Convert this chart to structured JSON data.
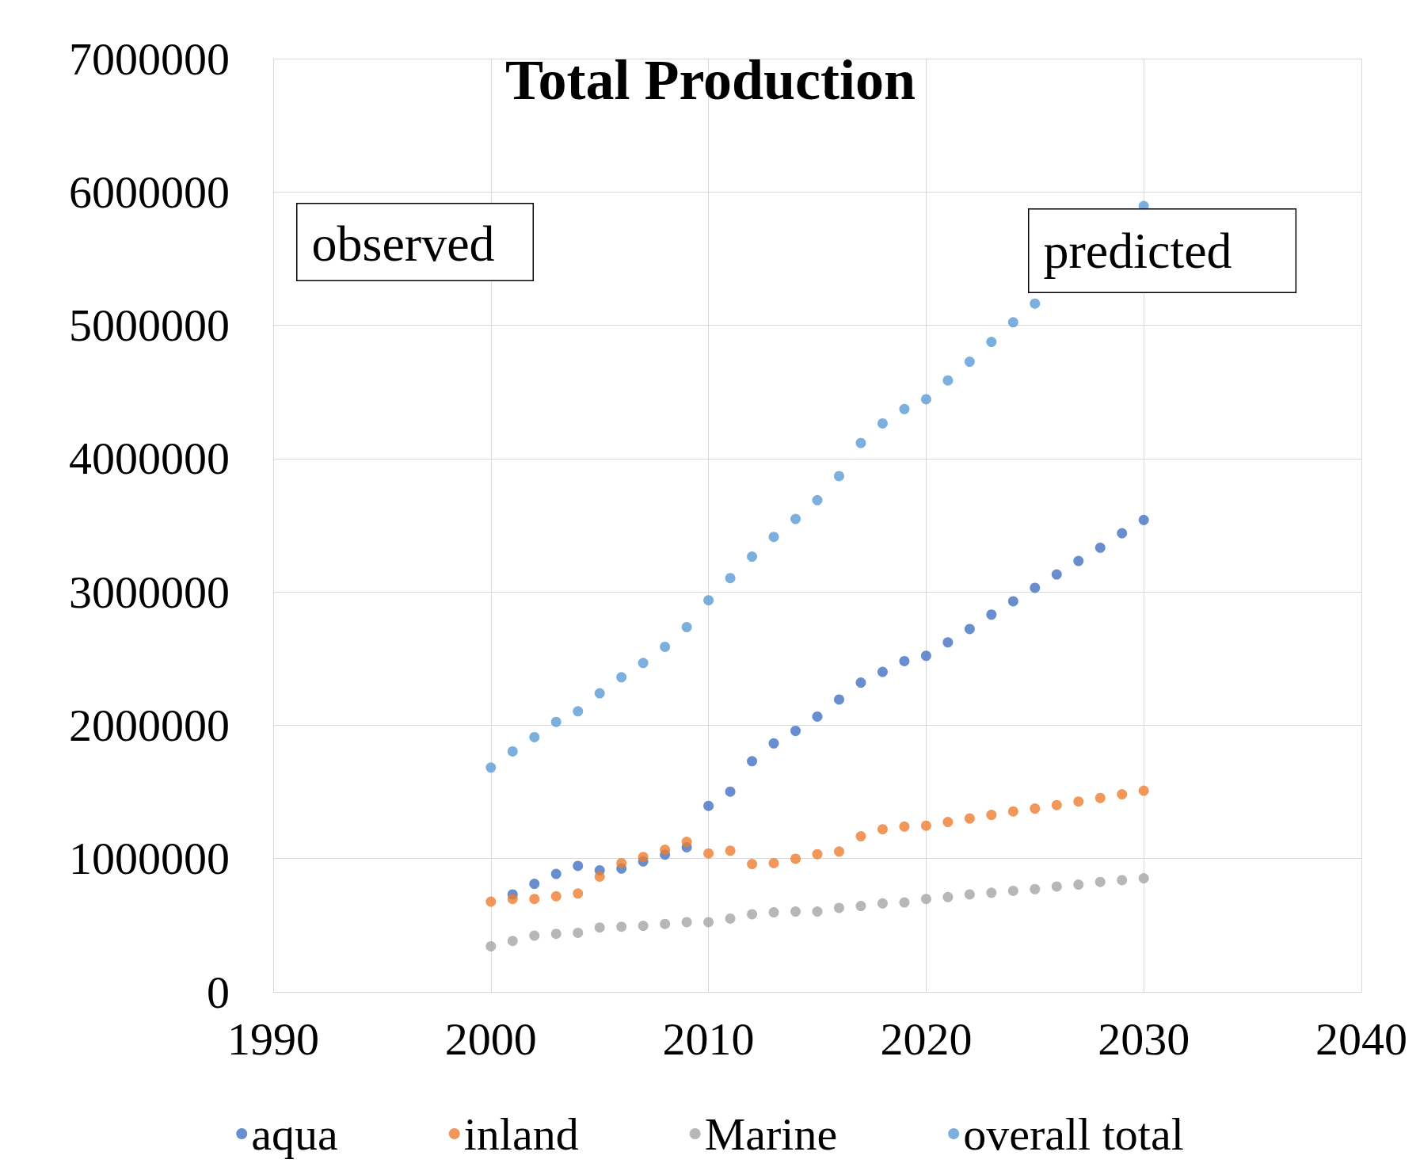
{
  "chart_data": {
    "type": "scatter",
    "title": "Total Production",
    "x": [
      2000,
      2001,
      2002,
      2003,
      2004,
      2005,
      2006,
      2007,
      2008,
      2009,
      2010,
      2011,
      2012,
      2013,
      2014,
      2015,
      2016,
      2017,
      2018,
      2019,
      2020,
      2021,
      2022,
      2023,
      2024,
      2025,
      2026,
      2027,
      2028,
      2029,
      2030
    ],
    "series": [
      {
        "name": "aqua",
        "color": "#4472c4",
        "values": [
          null,
          731000,
          811000,
          885000,
          945000,
          912000,
          925000,
          979000,
          1030000,
          1085000,
          1395000,
          1502000,
          1730000,
          1864000,
          1958000,
          2065000,
          2193000,
          2320000,
          2400000,
          2481000,
          2521000,
          2622000,
          2722000,
          2830000,
          2930000,
          3031000,
          3131000,
          3232000,
          3332000,
          3440000,
          3540000
        ]
      },
      {
        "name": "inland",
        "color": "#ed7d31",
        "values": [
          677000,
          697000,
          697000,
          717000,
          738000,
          865000,
          966000,
          1012000,
          1066000,
          1126000,
          1039000,
          1059000,
          959000,
          966000,
          999000,
          1033000,
          1053000,
          1167000,
          1220000,
          1240000,
          1247000,
          1274000,
          1301000,
          1328000,
          1354000,
          1375000,
          1401000,
          1428000,
          1455000,
          1482000,
          1509000
        ]
      },
      {
        "name": "Marine",
        "color": "#a5a5a5",
        "values": [
          342000,
          382000,
          422000,
          436000,
          443000,
          483000,
          489000,
          496000,
          510000,
          523000,
          523000,
          550000,
          583000,
          597000,
          603000,
          603000,
          630000,
          644000,
          664000,
          671000,
          697000,
          711000,
          731000,
          744000,
          758000,
          771000,
          791000,
          805000,
          825000,
          838000,
          852000
        ]
      },
      {
        "name": "overall total",
        "color": "#5b9bd5",
        "values": [
          1683000,
          1804000,
          1911000,
          2025000,
          2105000,
          2240000,
          2360000,
          2467000,
          2588000,
          2736000,
          2937000,
          3104000,
          3265000,
          3413000,
          3547000,
          3688000,
          3869000,
          4117000,
          4264000,
          4372000,
          4445000,
          4586000,
          4727000,
          4875000,
          5022000,
          5163000,
          null,
          null,
          null,
          null,
          5894000
        ]
      }
    ],
    "xlim": [
      1990,
      2040
    ],
    "xticks": [
      1990,
      2000,
      2010,
      2020,
      2030,
      2040
    ],
    "ylim": [
      0,
      7000000
    ],
    "yticks": [
      0,
      1000000,
      2000000,
      3000000,
      4000000,
      5000000,
      6000000,
      7000000
    ],
    "annotations": [
      "observed",
      "predicted"
    ],
    "grid": true,
    "legend": "bottom",
    "marker": "circle"
  }
}
